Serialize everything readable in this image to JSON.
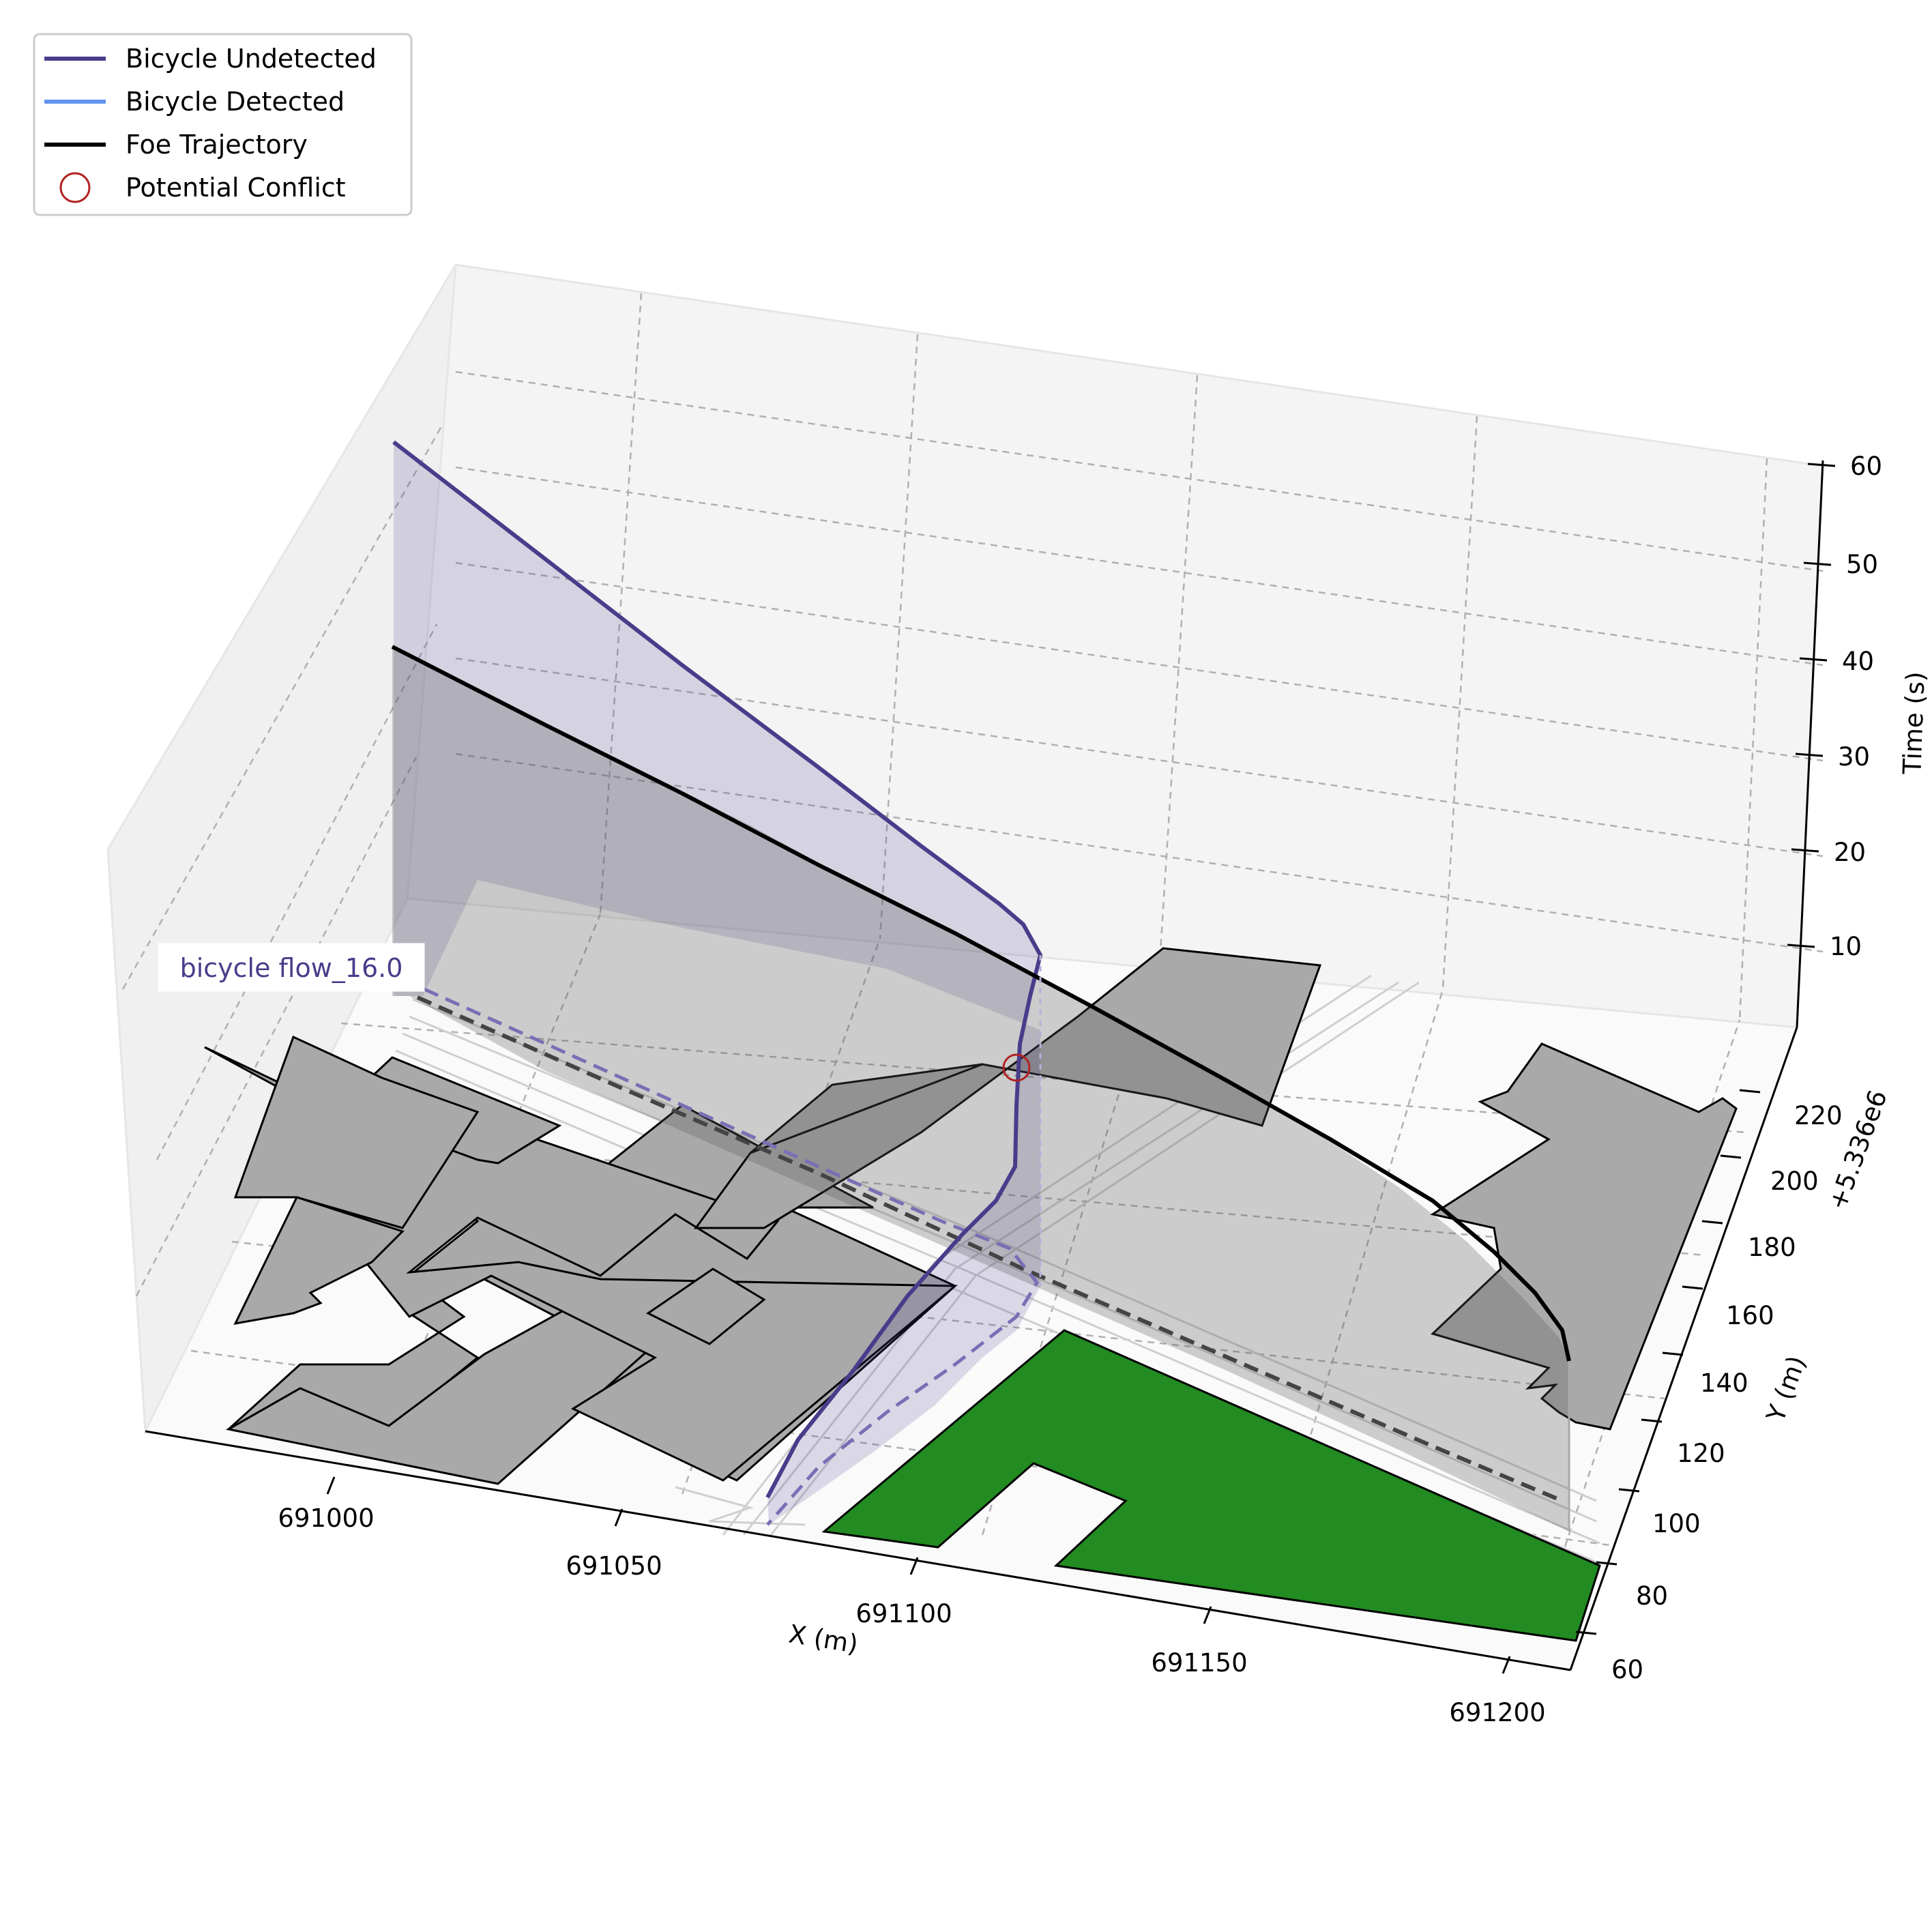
{
  "chart_data": {
    "type": "3d-line",
    "title": "",
    "xlabel": "X (m)",
    "ylabel": "Y (m)",
    "zlabel": "Time (s)",
    "y_offset_label": "+5.336e6",
    "x_ticks": [
      "691000",
      "691050",
      "691100",
      "691150",
      "691200"
    ],
    "y_ticks": [
      "60",
      "80",
      "100",
      "120",
      "140",
      "160",
      "180",
      "200",
      "220"
    ],
    "z_ticks": [
      "10",
      "20",
      "30",
      "40",
      "50",
      "60"
    ],
    "xlim": [
      690975,
      691210
    ],
    "ylim": [
      55,
      235
    ],
    "zlim": [
      0,
      60
    ],
    "grid": true,
    "legend_position": "upper-left",
    "legend": [
      {
        "label": "Bicycle Undetected",
        "color": "#483d8b",
        "style": "line"
      },
      {
        "label": "Bicycle Detected",
        "color": "#6495ed",
        "style": "line"
      },
      {
        "label": "Foe Trajectory",
        "color": "#000000",
        "style": "line"
      },
      {
        "label": "Potential Conflict",
        "color": "#b22222",
        "style": "circle"
      }
    ],
    "annotation": "bicycle flow_16.0",
    "series": [
      {
        "name": "Bicycle Undetected",
        "color": "#483d8b",
        "points": [
          [
            691075,
            70,
            0
          ],
          [
            691087,
            97,
            4
          ],
          [
            691097,
            127,
            8
          ],
          [
            691104,
            160,
            10
          ],
          [
            691107,
            190,
            12
          ],
          [
            691111,
            205,
            17
          ],
          [
            691110,
            215,
            22
          ],
          [
            691100,
            230,
            28
          ],
          [
            691075,
            236,
            36
          ],
          [
            691040,
            240,
            44
          ],
          [
            691005,
            243,
            52
          ],
          [
            690990,
            245,
            58
          ]
        ]
      },
      {
        "name": "Foe Trajectory",
        "color": "#000000",
        "points": [
          [
            691195,
            132,
            0
          ],
          [
            691185,
            142,
            3
          ],
          [
            691170,
            153,
            6
          ],
          [
            691150,
            166,
            10
          ],
          [
            691125,
            178,
            15
          ],
          [
            691100,
            190,
            20
          ],
          [
            691070,
            200,
            26
          ],
          [
            691040,
            210,
            32
          ],
          [
            691010,
            220,
            38
          ],
          [
            690990,
            228,
            43
          ]
        ]
      }
    ],
    "conflict_point": [
      691107,
      196,
      12
    ],
    "lanes": [
      {
        "name": "bicycle-path-projection",
        "color": "#7a6fb5",
        "style": "dashed",
        "points": [
          [
            691075,
            70,
            0
          ],
          [
            691107,
            190,
            0
          ],
          [
            691030,
            228,
            0
          ],
          [
            690995,
            240,
            0
          ]
        ]
      },
      {
        "name": "foe-path-projection",
        "color": "#444444",
        "style": "dashed",
        "points": [
          [
            691195,
            132,
            0
          ],
          [
            691100,
            190,
            0
          ],
          [
            690995,
            240,
            0
          ]
        ]
      }
    ],
    "polygon_colors": {
      "building": "#a9a9a9",
      "green": "#228b22"
    }
  }
}
